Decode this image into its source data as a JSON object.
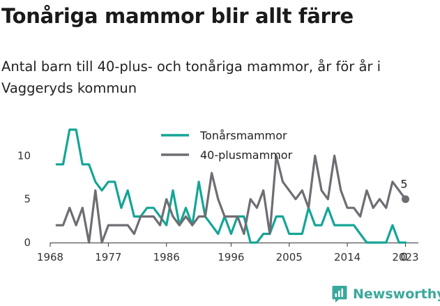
{
  "title": "Tonåriga mammor blir allt färre",
  "subtitle": "Antal barn till 40-plus- och tonåriga mammor, år för år i Vaggeryds kommun",
  "brand": {
    "name": "Newsworthy",
    "color": "#3aa89c",
    "icon": "newsworthy-logo-icon"
  },
  "chart_data": {
    "type": "line",
    "x": [
      1969,
      1970,
      1971,
      1972,
      1973,
      1974,
      1975,
      1976,
      1977,
      1978,
      1979,
      1980,
      1981,
      1982,
      1983,
      1984,
      1985,
      1986,
      1987,
      1988,
      1989,
      1990,
      1991,
      1992,
      1993,
      1994,
      1995,
      1996,
      1997,
      1998,
      1999,
      2000,
      2001,
      2002,
      2003,
      2004,
      2005,
      2006,
      2007,
      2008,
      2009,
      2010,
      2011,
      2012,
      2013,
      2014,
      2015,
      2016,
      2017,
      2018,
      2019,
      2020,
      2021,
      2022,
      2023
    ],
    "series": [
      {
        "name": "Tonårsmammor",
        "color": "#14a596",
        "values": [
          9,
          9,
          13,
          13,
          9,
          9,
          7,
          6,
          7,
          7,
          4,
          6,
          3,
          3,
          4,
          4,
          3,
          2,
          6,
          2,
          4,
          2,
          7,
          3,
          2,
          1,
          3,
          1,
          3,
          3,
          0,
          0,
          1,
          1,
          3,
          3,
          1,
          1,
          1,
          4,
          2,
          2,
          4,
          2,
          2,
          2,
          2,
          1,
          0,
          0,
          0,
          0,
          2,
          0,
          0
        ]
      },
      {
        "name": "40-plusmammor",
        "color": "#6d6d73",
        "values": [
          2,
          2,
          4,
          2,
          4,
          0,
          6,
          0,
          2,
          2,
          2,
          2,
          1,
          3,
          3,
          3,
          2,
          5,
          3,
          2,
          3,
          2,
          3,
          3,
          8,
          5,
          3,
          3,
          3,
          1,
          5,
          4,
          6,
          1,
          10,
          7,
          6,
          5,
          6,
          4,
          10,
          6,
          5,
          10,
          6,
          4,
          4,
          3,
          6,
          4,
          5,
          4,
          7,
          6,
          5
        ]
      }
    ],
    "xticks": [
      "1968",
      "1977",
      "1986",
      "1996",
      "2005",
      "2014",
      "2023"
    ],
    "yticks": [
      "0",
      "5",
      "10"
    ],
    "xlim": [
      1968,
      2025
    ],
    "ylim": [
      0,
      13
    ],
    "legend": "top-center",
    "end_labels": [
      "5",
      "0"
    ],
    "grid": false
  }
}
